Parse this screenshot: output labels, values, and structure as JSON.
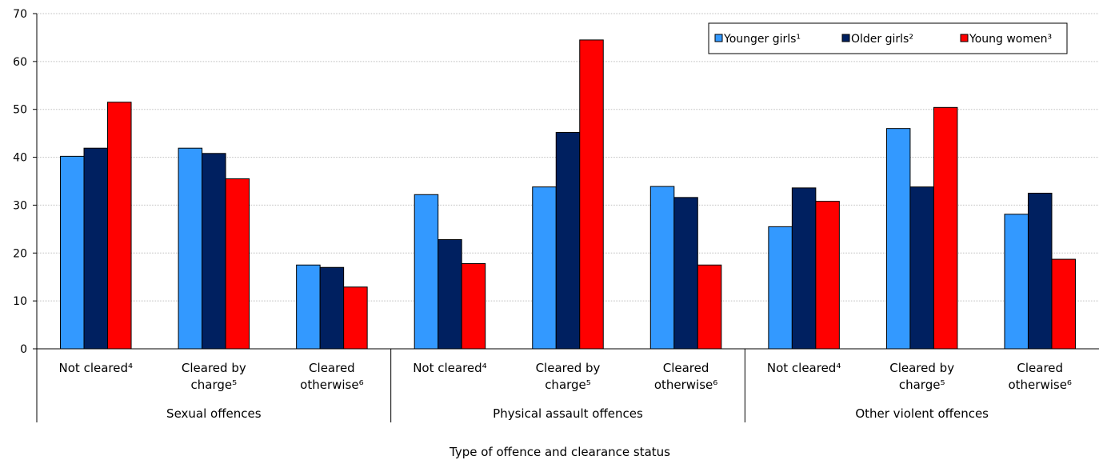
{
  "chart_data": {
    "type": "bar",
    "xlabel": "Type of offence and clearance status",
    "ylabel": "",
    "ylim": [
      0,
      70
    ],
    "yticks": [
      0,
      10,
      20,
      30,
      40,
      50,
      60,
      70
    ],
    "grid": true,
    "legend_position": "top-right",
    "groups": [
      "Sexual offences",
      "Physical assault offences",
      "Other violent offences"
    ],
    "categories": [
      [
        "Not cleared⁴"
      ],
      [
        "Cleared by",
        "charge⁵"
      ],
      [
        "Cleared",
        "otherwise⁶"
      ],
      [
        "Not cleared⁴"
      ],
      [
        "Cleared by",
        "charge⁵"
      ],
      [
        "Cleared",
        "otherwise⁶"
      ],
      [
        "Not cleared⁴"
      ],
      [
        "Cleared by",
        "charge⁵"
      ],
      [
        "Cleared",
        "otherwise⁶"
      ]
    ],
    "series": [
      {
        "name": "Younger girls¹",
        "color": "#3399ff",
        "values": [
          40.2,
          41.9,
          17.5,
          32.2,
          33.8,
          33.9,
          25.5,
          46.0,
          28.1
        ]
      },
      {
        "name": "Older girls²",
        "color": "#002060",
        "values": [
          41.9,
          40.8,
          17.0,
          22.8,
          45.2,
          31.6,
          33.6,
          33.8,
          32.5
        ]
      },
      {
        "name": "Young women³",
        "color": "#ff0000",
        "values": [
          51.5,
          35.5,
          12.9,
          17.8,
          64.5,
          17.5,
          30.8,
          50.4,
          18.7
        ]
      }
    ]
  }
}
